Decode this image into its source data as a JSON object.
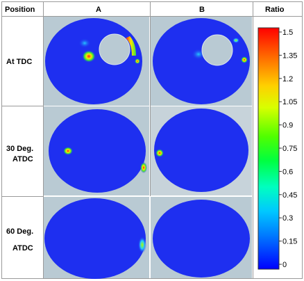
{
  "headers": {
    "position": "Position",
    "col_a": "A",
    "col_b": "B",
    "ratio": "Ratio"
  },
  "rows": [
    {
      "line1": "At TDC",
      "line2": ""
    },
    {
      "line1": "30 Deg.",
      "line2": "ATDC"
    },
    {
      "line1": "60 Deg.",
      "line2": "ATDC"
    }
  ],
  "colorbar": {
    "ticks": [
      "1.5",
      "1.35",
      "1.2",
      "1.05",
      "0.9",
      "0.75",
      "0.6",
      "0.45",
      "0.3",
      "0.15",
      "0"
    ],
    "min": 0,
    "max": 1.5
  },
  "colors": {
    "field_blue": "#1e2ff0",
    "panel_bg": "#b9cad3",
    "hot_red": "#ff1a1a",
    "hot_yellow": "#ffe600",
    "hot_green": "#39e639",
    "cyan": "#25c8ff"
  }
}
